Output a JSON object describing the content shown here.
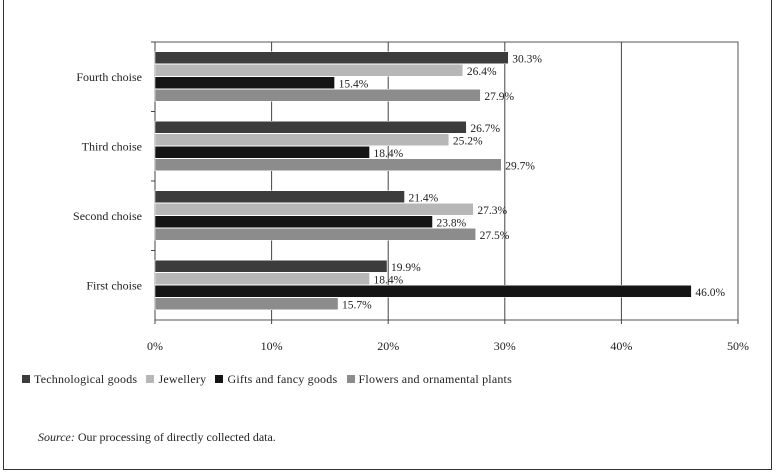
{
  "chart_data": {
    "type": "bar",
    "orientation": "horizontal",
    "categories": [
      "Fourth choise",
      "Third choise",
      "Second choise",
      "First choise"
    ],
    "series": [
      {
        "name": "Technological goods",
        "color": "#3c3c3c",
        "values": [
          30.3,
          26.7,
          21.4,
          19.9
        ],
        "labels": [
          "30.3%",
          "26.7%",
          "21.4%",
          "19.9%"
        ]
      },
      {
        "name": "Jewellery",
        "color": "#b7b7b7",
        "values": [
          26.4,
          25.2,
          27.3,
          18.4
        ],
        "labels": [
          "26.4%",
          "25.2%",
          "27.3%",
          "18.4%"
        ]
      },
      {
        "name": "Gifts and fancy goods",
        "color": "#151515",
        "values": [
          15.4,
          18.4,
          23.8,
          46.0
        ],
        "labels": [
          "15.4%",
          "18.4%",
          "23.8%",
          "46.0%"
        ]
      },
      {
        "name": "Flowers and ornamental plants",
        "color": "#8c8c8c",
        "values": [
          27.9,
          29.7,
          27.5,
          15.7
        ],
        "labels": [
          "27.9%",
          "29.7%",
          "27.5%",
          "15.7%"
        ]
      }
    ],
    "xlim": [
      0,
      50
    ],
    "xticks": [
      "0%",
      "10%",
      "20%",
      "30%",
      "40%",
      "50%"
    ],
    "grid": true,
    "legend": "bottom"
  },
  "source": {
    "label": "Source:",
    "text": "Our processing of directly collected data."
  }
}
